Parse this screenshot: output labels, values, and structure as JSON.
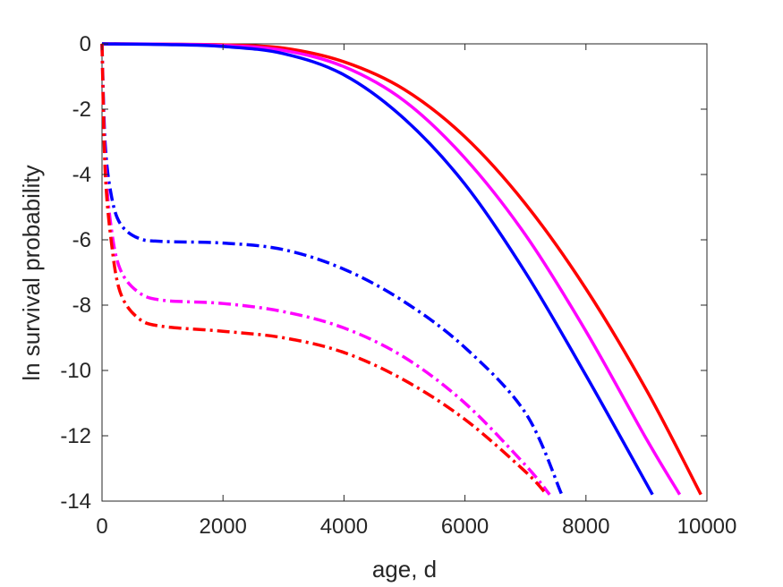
{
  "chart_data": {
    "type": "line",
    "title": "",
    "xlabel": "age, d",
    "ylabel": "ln survival probability",
    "xlim": [
      0,
      10000
    ],
    "ylim": [
      -14,
      0
    ],
    "xticks": [
      0,
      2000,
      4000,
      6000,
      8000,
      10000
    ],
    "yticks": [
      0,
      -2,
      -4,
      -6,
      -8,
      -10,
      -12,
      -14
    ],
    "grid": false,
    "legend": "none",
    "series": [
      {
        "color": "#ff0000",
        "style": "solid",
        "points": [
          [
            0,
            0
          ],
          [
            1000,
            -0.01
          ],
          [
            2000,
            -0.03
          ],
          [
            3000,
            -0.13
          ],
          [
            4000,
            -0.55
          ],
          [
            5000,
            -1.4
          ],
          [
            6000,
            -2.85
          ],
          [
            7000,
            -4.9
          ],
          [
            8000,
            -7.5
          ],
          [
            9000,
            -10.6
          ],
          [
            9900,
            -13.8
          ]
        ]
      },
      {
        "color": "#ff00ff",
        "style": "solid",
        "points": [
          [
            0,
            0
          ],
          [
            1000,
            -0.01
          ],
          [
            2000,
            -0.05
          ],
          [
            3000,
            -0.2
          ],
          [
            4000,
            -0.7
          ],
          [
            5000,
            -1.75
          ],
          [
            6000,
            -3.5
          ],
          [
            7000,
            -5.85
          ],
          [
            8000,
            -8.8
          ],
          [
            9000,
            -12.1
          ],
          [
            9550,
            -13.8
          ]
        ]
      },
      {
        "color": "#0000ff",
        "style": "solid",
        "points": [
          [
            0,
            0
          ],
          [
            1000,
            -0.02
          ],
          [
            2000,
            -0.08
          ],
          [
            3000,
            -0.3
          ],
          [
            4000,
            -0.95
          ],
          [
            5000,
            -2.3
          ],
          [
            6000,
            -4.3
          ],
          [
            7000,
            -7.0
          ],
          [
            8000,
            -10.15
          ],
          [
            9100,
            -13.8
          ]
        ]
      },
      {
        "color": "#0000ff",
        "style": "dashdot",
        "points": [
          [
            0,
            0
          ],
          [
            50,
            -3.0
          ],
          [
            150,
            -4.6
          ],
          [
            300,
            -5.5
          ],
          [
            600,
            -5.95
          ],
          [
            1000,
            -6.05
          ],
          [
            2000,
            -6.1
          ],
          [
            3000,
            -6.3
          ],
          [
            4000,
            -6.9
          ],
          [
            5000,
            -7.9
          ],
          [
            6000,
            -9.3
          ],
          [
            7000,
            -11.3
          ],
          [
            7600,
            -13.8
          ]
        ]
      },
      {
        "color": "#ff00ff",
        "style": "dashdot",
        "points": [
          [
            0,
            0
          ],
          [
            50,
            -3.5
          ],
          [
            150,
            -5.6
          ],
          [
            300,
            -6.9
          ],
          [
            600,
            -7.6
          ],
          [
            1000,
            -7.85
          ],
          [
            2000,
            -7.95
          ],
          [
            3000,
            -8.2
          ],
          [
            4000,
            -8.7
          ],
          [
            5000,
            -9.6
          ],
          [
            6000,
            -11.0
          ],
          [
            7000,
            -12.9
          ],
          [
            7400,
            -13.8
          ]
        ]
      },
      {
        "color": "#ff0000",
        "style": "dashdot",
        "points": [
          [
            0,
            0
          ],
          [
            50,
            -3.8
          ],
          [
            150,
            -6.0
          ],
          [
            300,
            -7.6
          ],
          [
            600,
            -8.4
          ],
          [
            1000,
            -8.65
          ],
          [
            2000,
            -8.8
          ],
          [
            3000,
            -9.0
          ],
          [
            4000,
            -9.45
          ],
          [
            5000,
            -10.3
          ],
          [
            6000,
            -11.5
          ],
          [
            7000,
            -13.1
          ],
          [
            7350,
            -13.8
          ]
        ]
      }
    ]
  }
}
